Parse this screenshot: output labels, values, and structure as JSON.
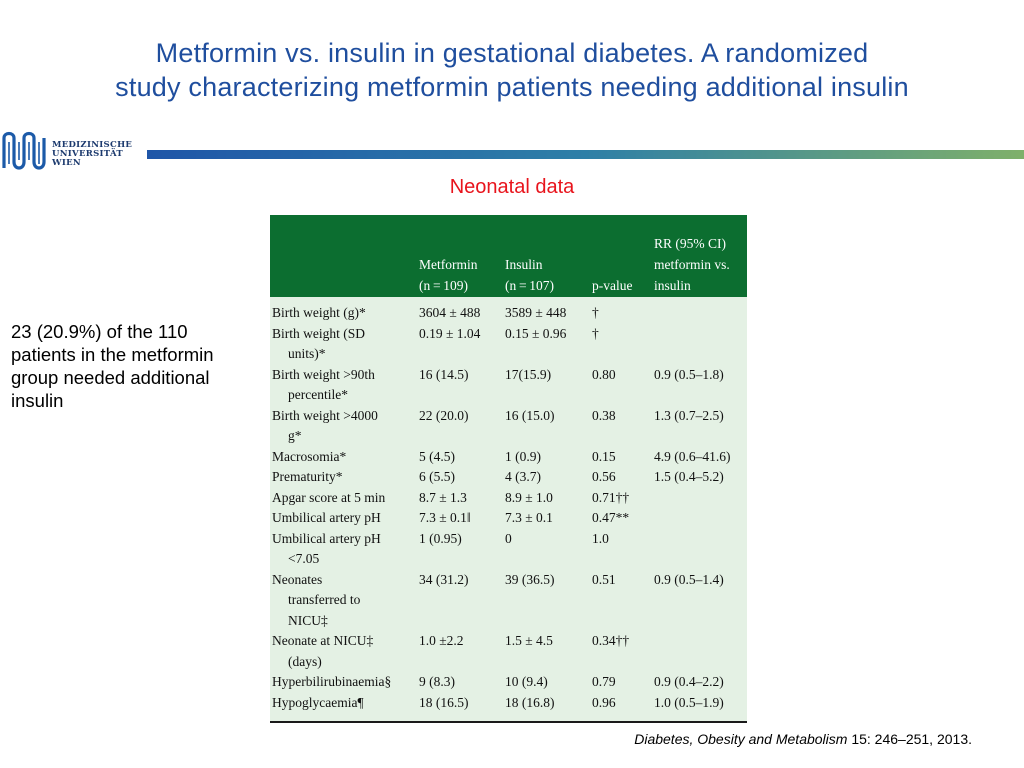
{
  "title_line1": "Metformin vs. insulin in gestational diabetes. A randomized",
  "title_line2": "study characterizing metformin patients needing additional insulin",
  "logo": {
    "line1": "MEDIZINISCHE",
    "line2": "UNIVERSITÄT",
    "line3": "WIEN"
  },
  "subtitle": "Neonatal data",
  "side_note": "23 (20.9%) of the 110 patients in the metformin group needed additional insulin",
  "table": {
    "headers": {
      "metformin_1": "Metformin",
      "metformin_2": "(n = 109)",
      "insulin_1": "Insulin",
      "insulin_2": "(n = 107)",
      "pvalue": "p-value",
      "rr_1": "RR (95% CI)",
      "rr_2": "metformin vs.",
      "rr_3": "insulin"
    },
    "rows": [
      {
        "label": [
          "Birth weight (g)*"
        ],
        "metformin": "3604 ± 488",
        "insulin": "3589 ± 448",
        "p": "†",
        "rr": ""
      },
      {
        "label": [
          "Birth weight (SD",
          "units)*"
        ],
        "metformin": "0.19 ± 1.04",
        "insulin": "0.15 ± 0.96",
        "p": "†",
        "rr": ""
      },
      {
        "label": [
          "Birth weight >90th",
          "percentile*"
        ],
        "metformin": "16 (14.5)",
        "insulin": "17(15.9)",
        "p": "0.80",
        "rr": "0.9 (0.5–1.8)"
      },
      {
        "label": [
          "Birth weight >4000",
          "g*"
        ],
        "metformin": "22 (20.0)",
        "insulin": "16 (15.0)",
        "p": "0.38",
        "rr": "1.3 (0.7–2.5)"
      },
      {
        "label": [
          "Macrosomia*"
        ],
        "metformin": "5 (4.5)",
        "insulin": "1 (0.9)",
        "p": "0.15",
        "rr": "4.9 (0.6–41.6)"
      },
      {
        "label": [
          "Prematurity*"
        ],
        "metformin": "6 (5.5)",
        "insulin": "4 (3.7)",
        "p": "0.56",
        "rr": "1.5 (0.4–5.2)"
      },
      {
        "label": [
          "Apgar score at 5 min"
        ],
        "metformin": "8.7 ± 1.3",
        "insulin": "8.9 ± 1.0",
        "p": "0.71††",
        "rr": ""
      },
      {
        "label": [
          "Umbilical artery pH"
        ],
        "metformin": "7.3 ± 0.1‖",
        "insulin": "7.3 ± 0.1",
        "p": "0.47**",
        "rr": ""
      },
      {
        "label": [
          "Umbilical artery pH",
          "<7.05"
        ],
        "metformin": "1 (0.95)",
        "insulin": "0",
        "p": "1.0",
        "rr": ""
      },
      {
        "label": [
          "Neonates",
          "transferred to",
          "NICU‡"
        ],
        "metformin": "34 (31.2)",
        "insulin": "39 (36.5)",
        "p": "0.51",
        "rr": "0.9 (0.5–1.4)"
      },
      {
        "label": [
          "Neonate at NICU‡",
          "(days)"
        ],
        "metformin": "1.0 ±2.2",
        "insulin": "1.5 ± 4.5",
        "p": "0.34††",
        "rr": ""
      },
      {
        "label": [
          "Hyperbilirubinaemia§"
        ],
        "metformin": "9 (8.3)",
        "insulin": "10 (9.4)",
        "p": "0.79",
        "rr": "0.9 (0.4–2.2)"
      },
      {
        "label": [
          "Hypoglycaemia¶"
        ],
        "metformin": "18 (16.5)",
        "insulin": "18 (16.8)",
        "p": "0.96",
        "rr": "1.0 (0.5–1.9)"
      }
    ]
  },
  "citation": {
    "journal": "Diabetes, Obesity and Metabolism",
    "rest": " 15: 246–251, 2013."
  },
  "colors": {
    "title": "#1f4e9e",
    "subtitle": "#e8141c",
    "table_header": "#0c6e30",
    "table_body": "#e4f1e4"
  }
}
